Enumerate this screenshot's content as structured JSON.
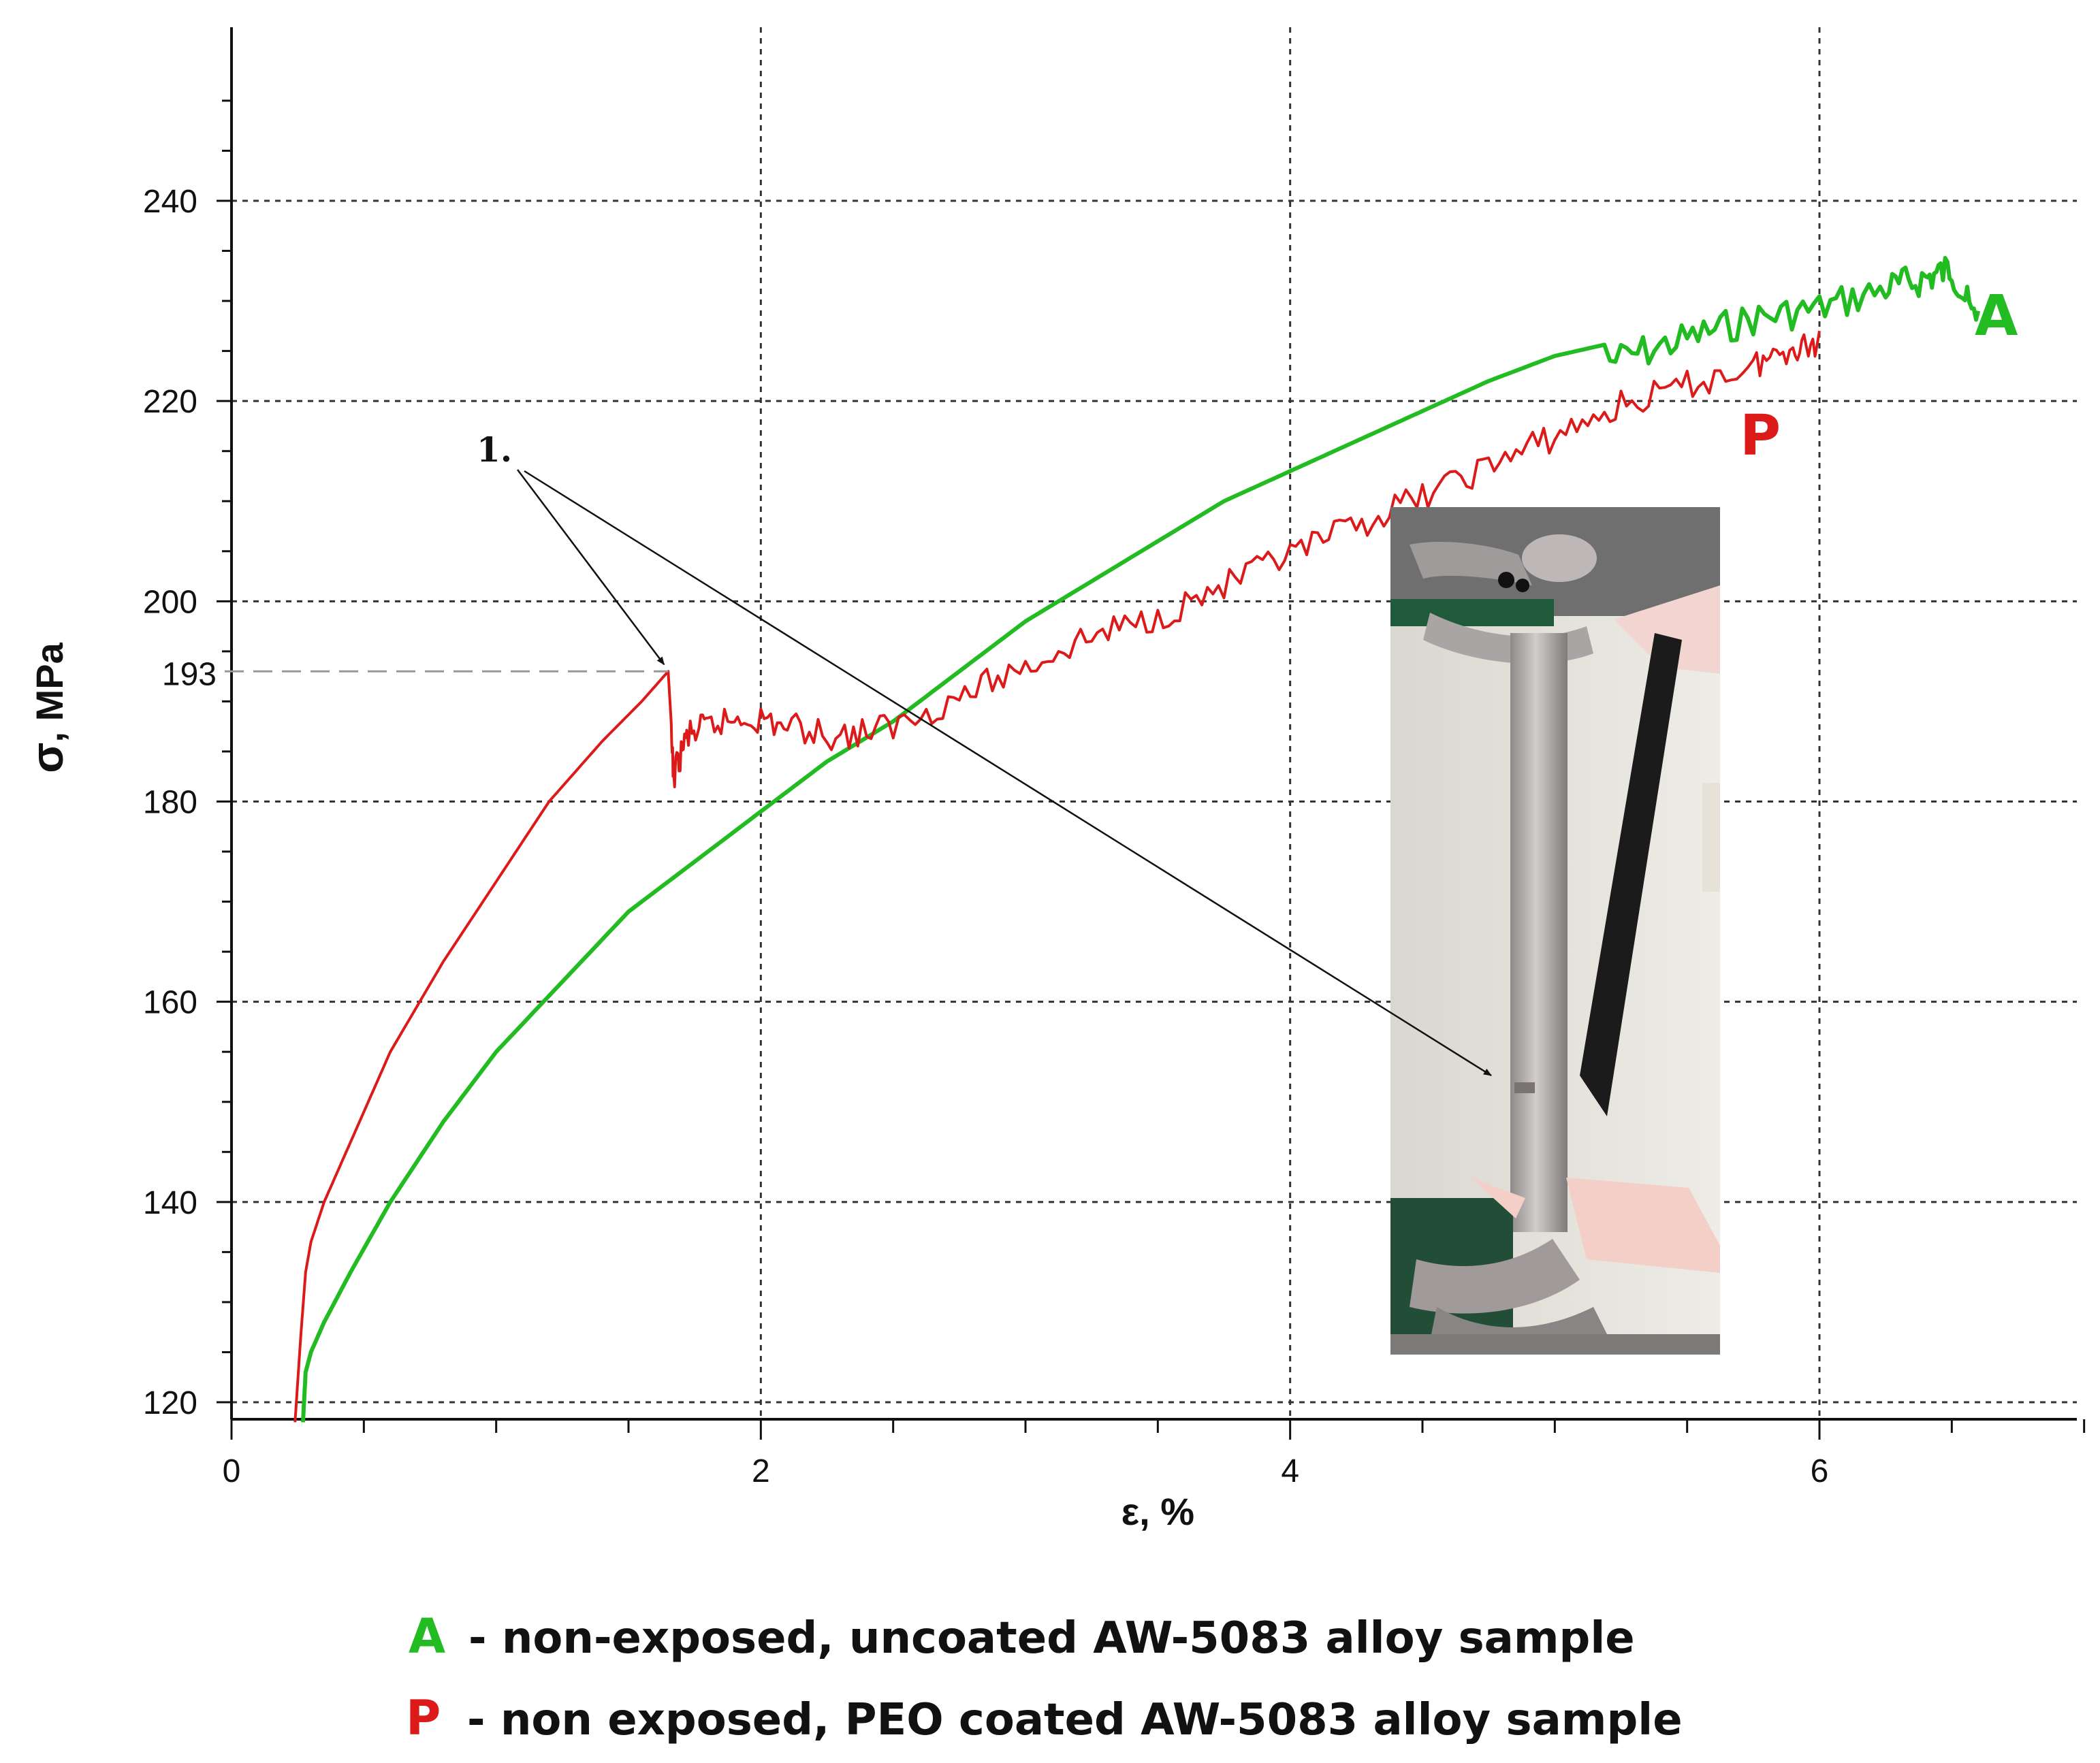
{
  "chart_data": {
    "type": "line",
    "xlabel": "ε, %",
    "ylabel_symbol": "σ",
    "ylabel_unit": ", MPa",
    "xlim": [
      0,
      7
    ],
    "ylim": [
      118,
      255
    ],
    "x_ticks": [
      0,
      2,
      4,
      6
    ],
    "y_ticks": [
      120,
      140,
      160,
      180,
      200,
      220,
      240
    ],
    "grid": true,
    "colors": {
      "A": "#22bb22",
      "P": "#dd1a1a"
    },
    "series": [
      {
        "name": "A",
        "x": [
          0.27,
          0.28,
          0.3,
          0.35,
          0.45,
          0.6,
          0.8,
          1.0,
          1.25,
          1.5,
          1.75,
          2.0,
          2.25,
          2.5,
          2.75,
          3.0,
          3.25,
          3.5,
          3.75,
          4.0,
          4.25,
          4.5,
          4.75,
          5.0,
          5.25,
          5.5,
          5.75,
          6.0,
          6.25,
          6.4,
          6.5,
          6.6
        ],
        "y": [
          118,
          123,
          125,
          128,
          133,
          140,
          148,
          155,
          162,
          169,
          174,
          179,
          184,
          188,
          193,
          198,
          202,
          206,
          210,
          213,
          216,
          219,
          222,
          224.5,
          226,
          228,
          230,
          231,
          233,
          234,
          235,
          229
        ]
      },
      {
        "name": "P",
        "x": [
          0.24,
          0.26,
          0.28,
          0.3,
          0.35,
          0.45,
          0.6,
          0.8,
          1.0,
          1.2,
          1.4,
          1.55,
          1.65,
          1.67,
          1.72,
          1.8,
          1.95,
          2.1,
          2.3,
          2.5,
          2.75,
          3.0,
          3.25,
          3.5,
          3.75,
          4.0,
          4.25,
          4.5,
          4.75,
          5.0,
          5.25,
          5.5,
          5.75,
          5.9,
          6.0
        ],
        "y": [
          118,
          126,
          133,
          136,
          140,
          146,
          155,
          164,
          172,
          180,
          186,
          190,
          193,
          184,
          188,
          189,
          190,
          189,
          188,
          189,
          192,
          195,
          198,
          200,
          203,
          206,
          209,
          212,
          215,
          218,
          221,
          223,
          225,
          227,
          227
        ]
      }
    ],
    "series_tags": [
      "A",
      "P"
    ],
    "annotations": {
      "marker_label": "1.",
      "reference_value": "193",
      "reference_y": 193,
      "arrow_target_x": 1.65,
      "arrow_target_y": 193
    },
    "legend": {
      "placement": "bottom",
      "items": [
        {
          "key": "A",
          "text": "- non-exposed, uncoated AW-5083 alloy sample"
        },
        {
          "key": "P",
          "text": "- non exposed, PEO coated AW-5083 alloy sample"
        }
      ]
    },
    "inset": {
      "kind": "photo of tensile test specimen in grips"
    }
  }
}
